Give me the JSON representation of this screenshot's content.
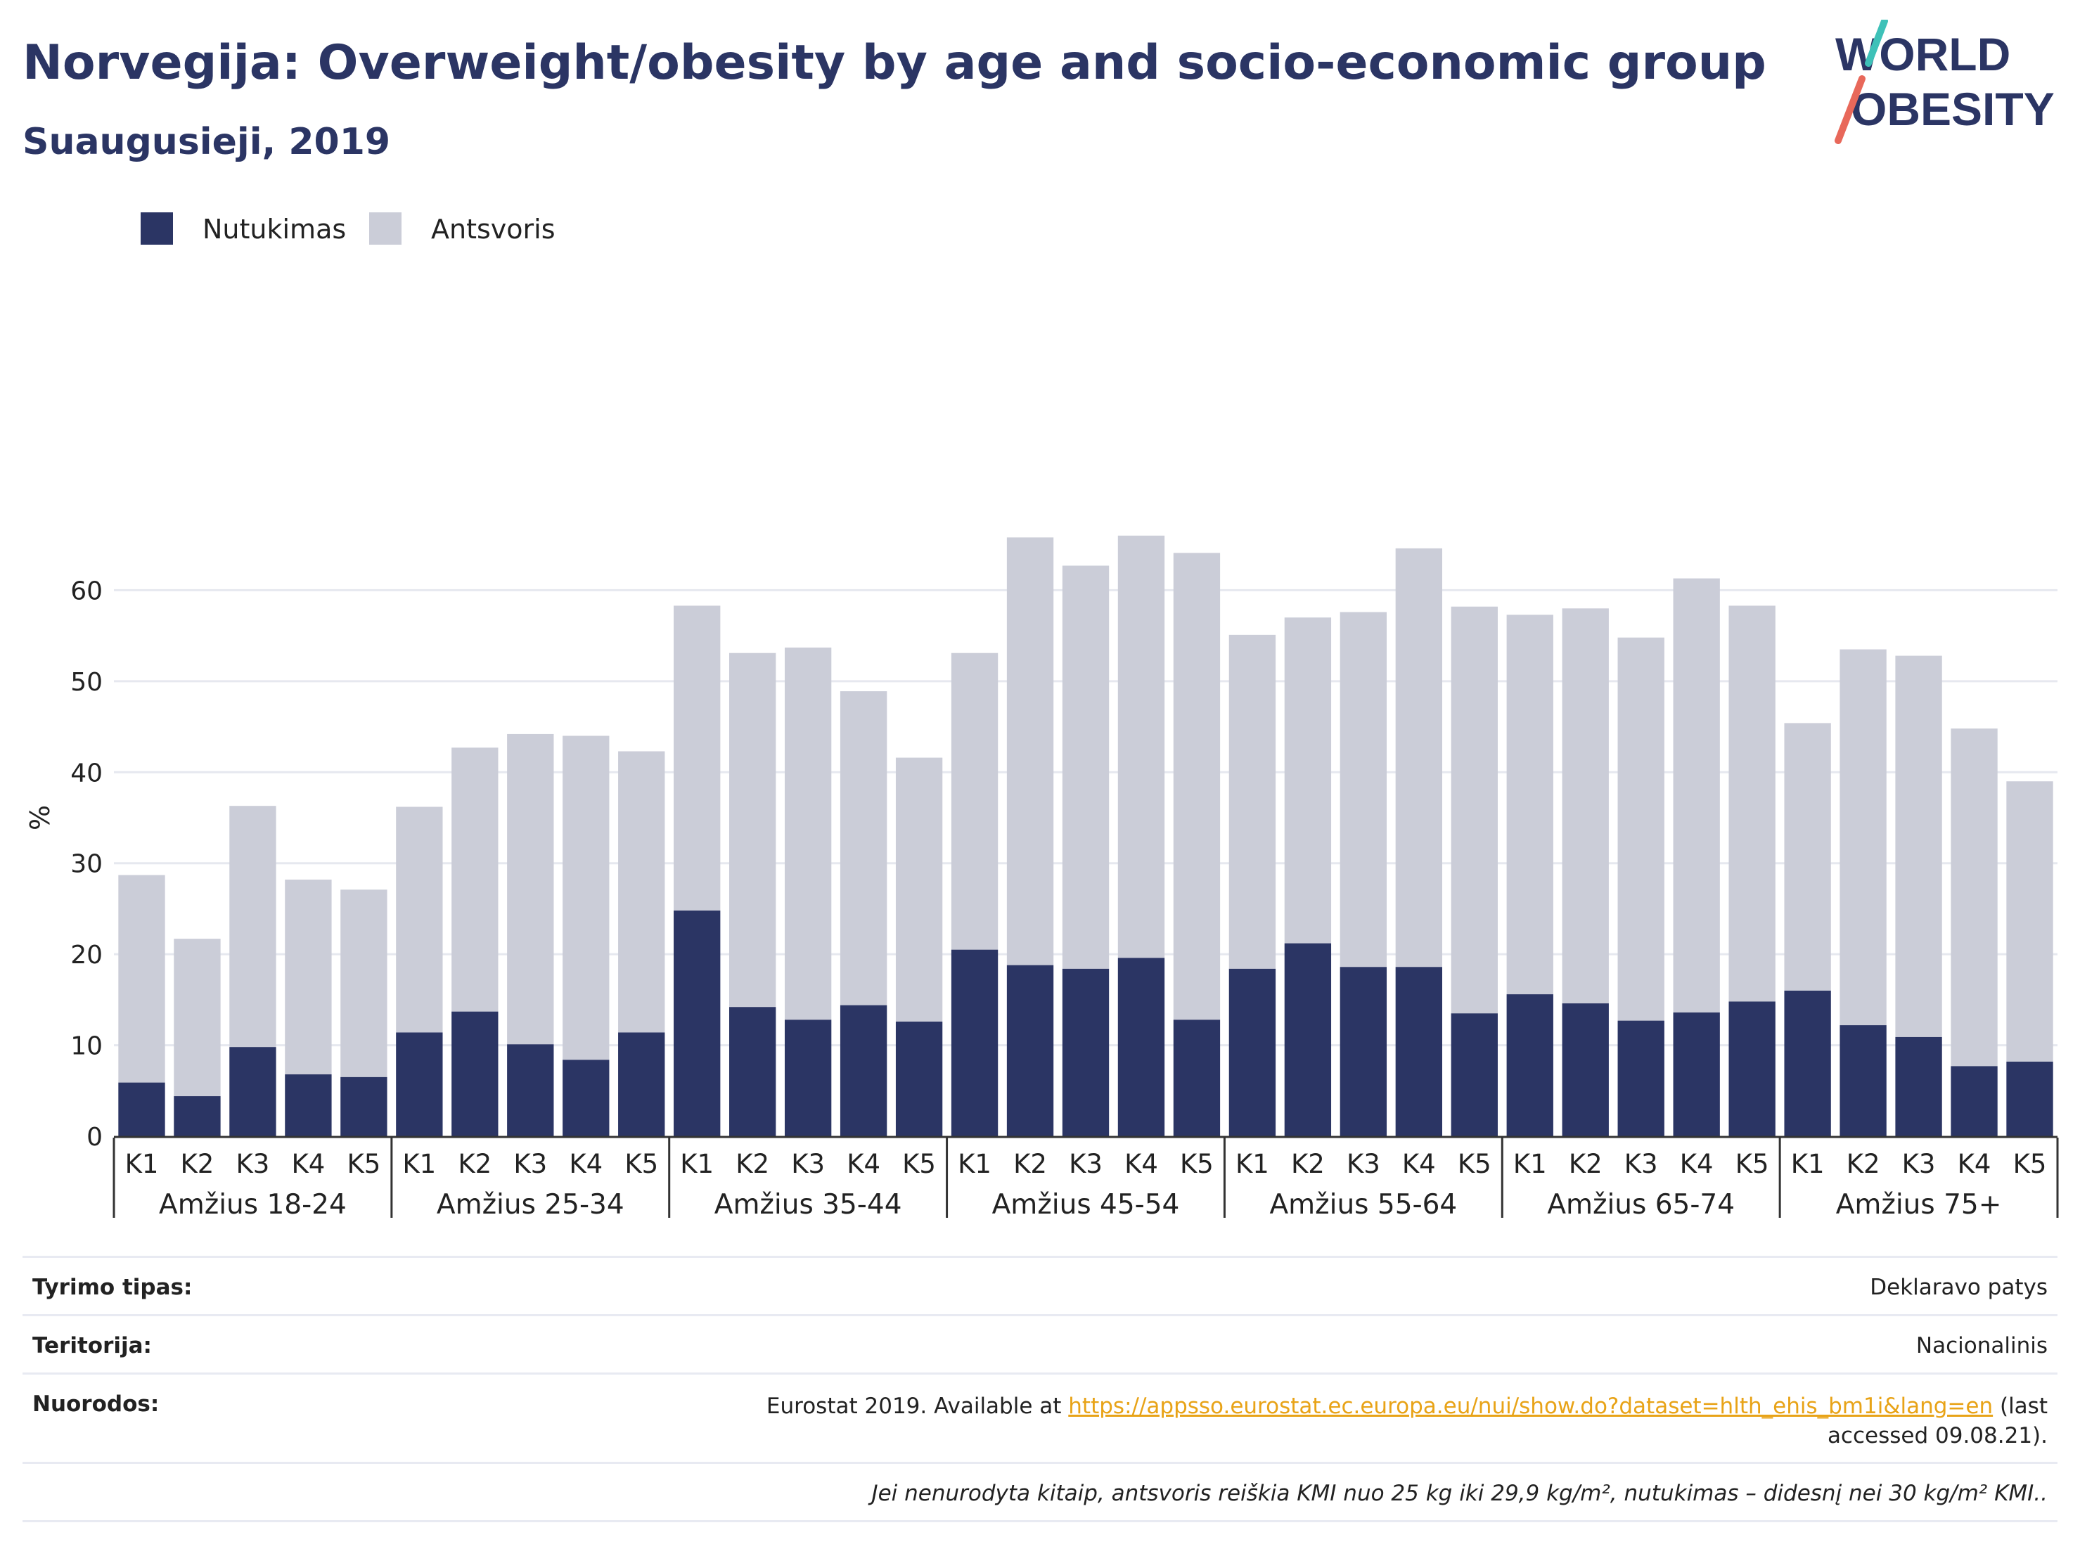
{
  "header": {
    "title": "Norvegija: Overweight/obesity by age and socio-economic group",
    "subtitle": "Suaugusieji, 2019"
  },
  "logo": {
    "line1": "WORLD",
    "line2": "OBESITY",
    "colors": {
      "text": "#2b3564",
      "slash_top": "#3ec1b8",
      "slash_bottom": "#e8685a"
    }
  },
  "colors": {
    "obesity": "#2b3564",
    "overweight": "#cbcdd8",
    "grid": "#e6e8ef",
    "axis": "#333333"
  },
  "chart_data": {
    "type": "bar",
    "stacked": true,
    "ylabel": "%",
    "ylim": [
      0,
      70
    ],
    "yticks": [
      0,
      10,
      20,
      30,
      40,
      50,
      60
    ],
    "grid": true,
    "legend_position": "top-left",
    "legend": [
      "Nutukimas",
      "Antsvoris"
    ],
    "groups": [
      {
        "label": "Amžius 18-24",
        "categories": [
          "K1",
          "K2",
          "K3",
          "K4",
          "K5"
        ],
        "obesity": [
          5.9,
          4.4,
          9.8,
          6.8,
          6.5
        ],
        "total": [
          28.7,
          21.7,
          36.3,
          28.2,
          27.1
        ]
      },
      {
        "label": "Amžius 25-34",
        "categories": [
          "K1",
          "K2",
          "K3",
          "K4",
          "K5"
        ],
        "obesity": [
          11.4,
          13.7,
          10.1,
          8.4,
          11.4
        ],
        "total": [
          36.2,
          42.7,
          44.2,
          44.0,
          42.3
        ]
      },
      {
        "label": "Amžius 35-44",
        "categories": [
          "K1",
          "K2",
          "K3",
          "K4",
          "K5"
        ],
        "obesity": [
          24.8,
          14.2,
          12.8,
          14.4,
          12.6
        ],
        "total": [
          58.3,
          53.1,
          53.7,
          48.9,
          41.6
        ]
      },
      {
        "label": "Amžius 45-54",
        "categories": [
          "K1",
          "K2",
          "K3",
          "K4",
          "K5"
        ],
        "obesity": [
          20.5,
          18.8,
          18.4,
          19.6,
          12.8
        ],
        "total": [
          53.1,
          65.8,
          62.7,
          66.0,
          64.1
        ]
      },
      {
        "label": "Amžius 55-64",
        "categories": [
          "K1",
          "K2",
          "K3",
          "K4",
          "K5"
        ],
        "obesity": [
          18.4,
          21.2,
          18.6,
          18.6,
          13.5
        ],
        "total": [
          55.1,
          57.0,
          57.6,
          64.6,
          58.2
        ]
      },
      {
        "label": "Amžius 65-74",
        "categories": [
          "K1",
          "K2",
          "K3",
          "K4",
          "K5"
        ],
        "obesity": [
          15.6,
          14.6,
          12.7,
          13.6,
          14.8
        ],
        "total": [
          57.3,
          58.0,
          54.8,
          61.3,
          58.3
        ]
      },
      {
        "label": "Amžius 75+",
        "categories": [
          "K1",
          "K2",
          "K3",
          "K4",
          "K5"
        ],
        "obesity": [
          16.0,
          12.2,
          10.9,
          7.7,
          8.2
        ],
        "total": [
          45.4,
          53.5,
          52.8,
          44.8,
          39.0
        ]
      }
    ]
  },
  "footer": {
    "survey_type_label": "Tyrimo tipas:",
    "survey_type_value": "Deklaravo patys",
    "territory_label": "Teritorija:",
    "territory_value": "Nacionalinis",
    "references_label": "Nuorodos:",
    "references_prefix": "Eurostat 2019. Available at ",
    "references_link": "https://appsso.eurostat.ec.europa.eu/nui/show.do?dataset=hlth_ehis_bm1i&lang=en",
    "references_suffix": " (last accessed 09.08.21).",
    "note": "Jei nenurodyta kitaip, antsvoris reiškia KMI nuo 25 kg iki 29,9 kg/m², nutukimas – didesnį nei 30 kg/m² KMI.."
  }
}
